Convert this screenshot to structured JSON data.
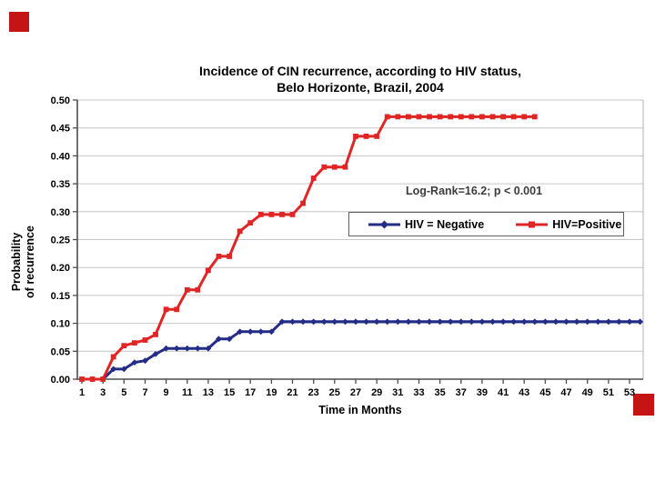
{
  "slide": {
    "decor_style": "background-color:#c41414"
  },
  "chart_data": {
    "type": "line",
    "title_line1": "Incidence of CIN recurrence, according to HIV status,",
    "title_line2": "Belo Horizonte, Brazil, 2004",
    "xlabel": "Time in Months",
    "ylabel_line1": "Probability",
    "ylabel_line2": "of recurrence",
    "annotation": "Log-Rank=16.2; p < 0.001",
    "x_start": 1,
    "x_step": 1,
    "xlim": [
      1,
      54
    ],
    "ylim": [
      0,
      0.5
    ],
    "grid": true,
    "legend_position": "inside-middle-right",
    "x_ticks": [
      1,
      3,
      5,
      7,
      9,
      11,
      13,
      15,
      17,
      19,
      21,
      23,
      25,
      27,
      29,
      31,
      33,
      35,
      37,
      39,
      41,
      43,
      45,
      47,
      49,
      51,
      53
    ],
    "y_ticks": [
      "0.00",
      "0.05",
      "0.10",
      "0.15",
      "0.20",
      "0.25",
      "0.30",
      "0.35",
      "0.40",
      "0.45",
      "0.50"
    ],
    "series": [
      {
        "name": "HIV = Negative",
        "color": "#232c87",
        "marker": "diamond",
        "values": [
          0,
          0,
          0,
          0.018,
          0.018,
          0.03,
          0.033,
          0.045,
          0.055,
          0.055,
          0.055,
          0.055,
          0.055,
          0.072,
          0.072,
          0.085,
          0.085,
          0.085,
          0.085,
          0.103,
          0.103,
          0.103,
          0.103,
          0.103,
          0.103,
          0.103,
          0.103,
          0.103,
          0.103,
          0.103,
          0.103,
          0.103,
          0.103,
          0.103,
          0.103,
          0.103,
          0.103,
          0.103,
          0.103,
          0.103,
          0.103,
          0.103,
          0.103,
          0.103,
          0.103,
          0.103,
          0.103,
          0.103,
          0.103,
          0.103,
          0.103,
          0.103,
          0.103,
          0.103
        ]
      },
      {
        "name": "HIV=Positive",
        "color": "#e02525",
        "marker": "square",
        "values": [
          0,
          0,
          0,
          0.04,
          0.06,
          0.065,
          0.07,
          0.08,
          0.125,
          0.125,
          0.16,
          0.16,
          0.195,
          0.22,
          0.22,
          0.265,
          0.28,
          0.295,
          0.295,
          0.295,
          0.295,
          0.315,
          0.36,
          0.38,
          0.38,
          0.38,
          0.435,
          0.435,
          0.435,
          0.47,
          0.47,
          0.47,
          0.47,
          0.47,
          0.47,
          0.47,
          0.47,
          0.47,
          0.47,
          0.47,
          0.47,
          0.47,
          0.47,
          0.47
        ]
      }
    ]
  }
}
